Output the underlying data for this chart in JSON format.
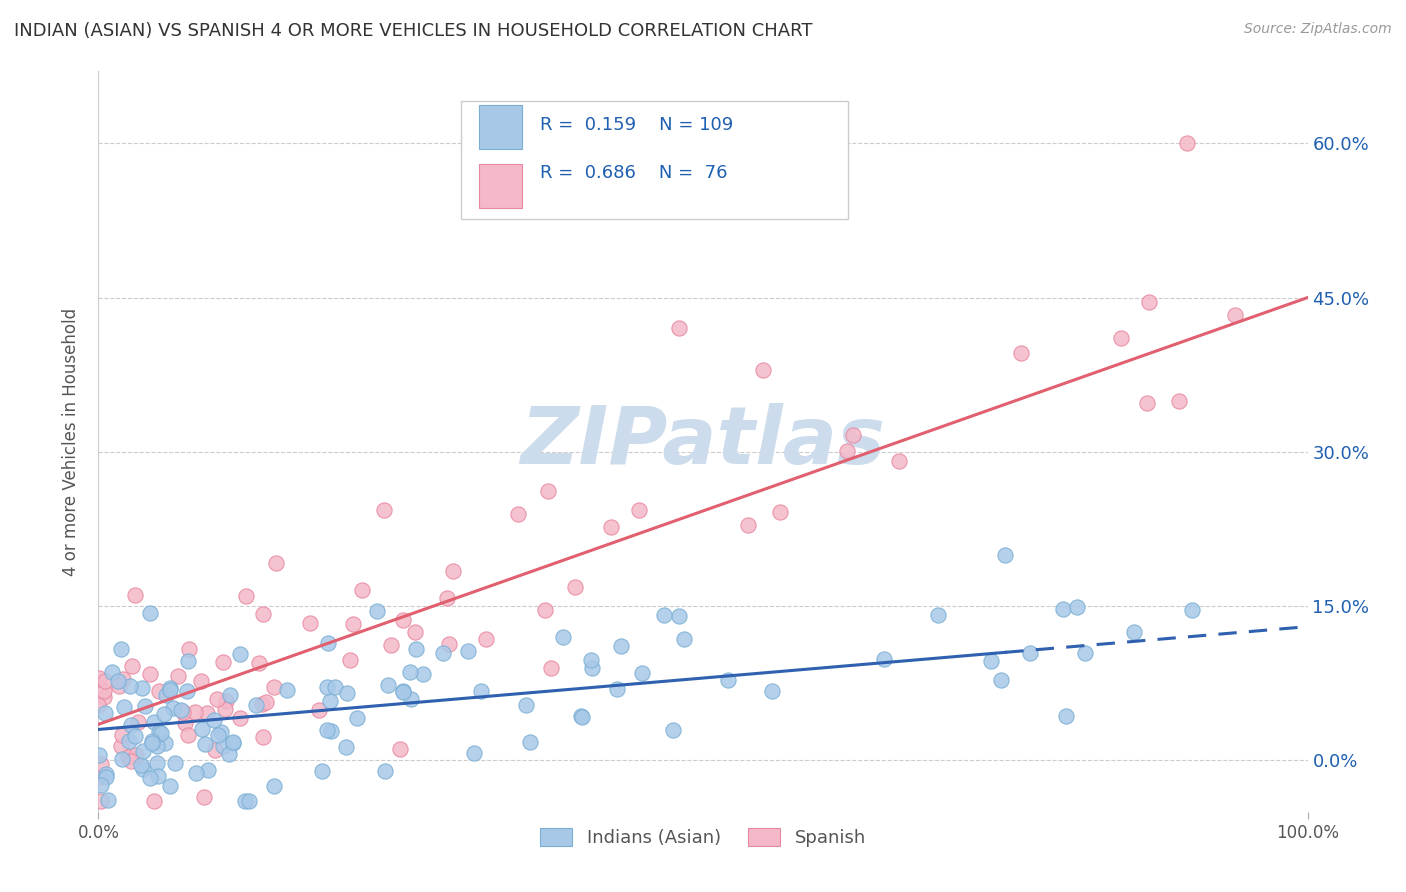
{
  "title": "INDIAN (ASIAN) VS SPANISH 4 OR MORE VEHICLES IN HOUSEHOLD CORRELATION CHART",
  "source": "Source: ZipAtlas.com",
  "ylabel": "4 or more Vehicles in Household",
  "ytick_labels": [
    "0.0%",
    "15.0%",
    "30.0%",
    "45.0%",
    "60.0%"
  ],
  "ytick_values": [
    0.0,
    15.0,
    30.0,
    45.0,
    60.0
  ],
  "blue_color": "#a8c8e8",
  "blue_edge_color": "#7aafd4",
  "pink_color": "#f4b8c8",
  "pink_edge_color": "#e888a0",
  "blue_line_color": "#3060b0",
  "pink_line_color": "#e06070",
  "legend_text_color": "#2060b0",
  "R_blue": 0.159,
  "N_blue": 109,
  "R_pink": 0.686,
  "N_pink": 76,
  "watermark": "ZIPatlas",
  "watermark_color": "#cddcec",
  "xmin": 0,
  "xmax": 100,
  "ymin": -5,
  "ymax": 67,
  "fig_width": 14.06,
  "fig_height": 8.92,
  "dpi": 100,
  "blue_line_y_start": 3.0,
  "blue_line_y_end": 13.0,
  "pink_line_y_start": 3.5,
  "pink_line_y_end": 45.0
}
